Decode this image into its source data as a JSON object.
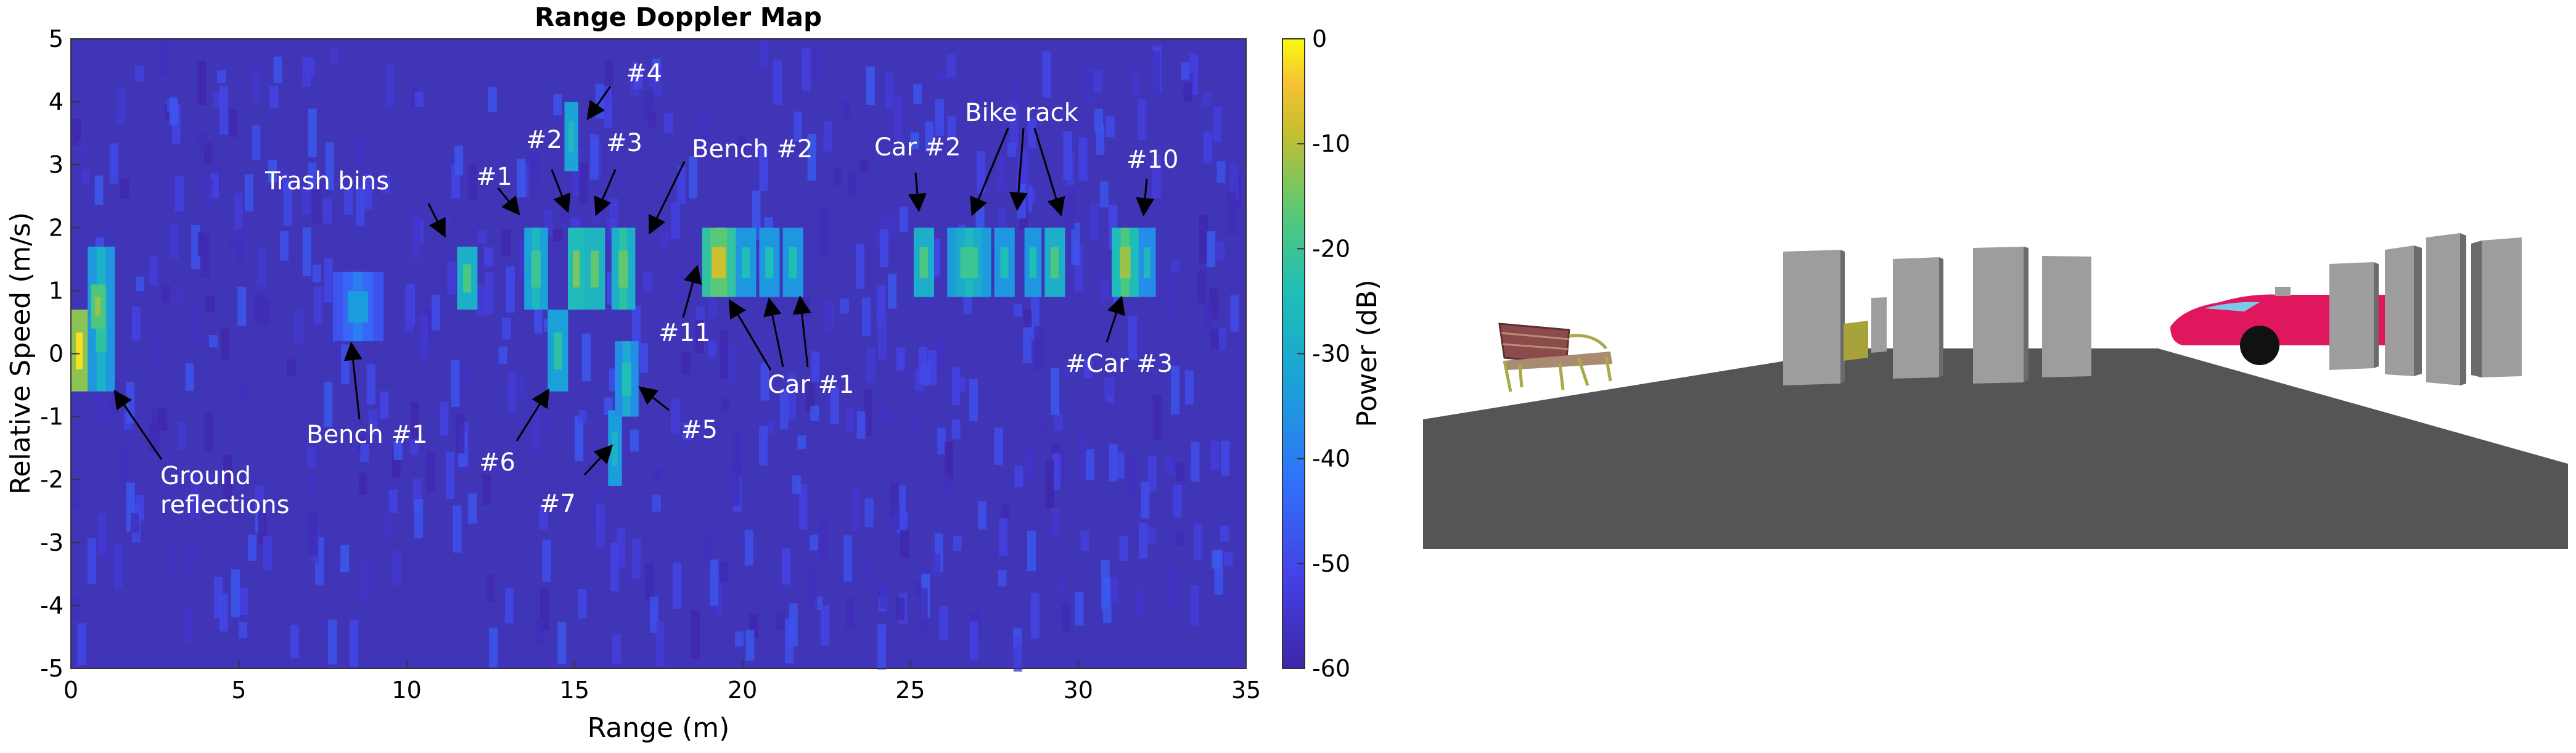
{
  "chart_data": {
    "type": "heatmap",
    "title": "Range Doppler Map",
    "xlabel": "Range (m)",
    "ylabel": "Relative Speed (m/s)",
    "xlim": [
      0,
      35
    ],
    "ylim": [
      -5,
      5
    ],
    "x_ticks": [
      "0",
      "5",
      "10",
      "15",
      "20",
      "25",
      "30",
      "35"
    ],
    "y_ticks": [
      "5",
      "4",
      "3",
      "2",
      "1",
      "0",
      "-1",
      "-2",
      "-3",
      "-4",
      "-5"
    ],
    "colorbar": {
      "label": "Power (dB)",
      "range": [
        -60,
        0
      ],
      "ticks": [
        "0",
        "-10",
        "-20",
        "-30",
        "-40",
        "-50",
        "-60"
      ],
      "colormap": "parula"
    },
    "background_power_db": -55,
    "detections": [
      {
        "range": [
          0.0,
          0.5
        ],
        "speed": [
          -0.6,
          0.7
        ],
        "power_db": -8
      },
      {
        "range": [
          0.5,
          1.3
        ],
        "speed": [
          -0.6,
          1.7
        ],
        "power_db": -28
      },
      {
        "range": [
          0.6,
          1.0
        ],
        "speed": [
          0.4,
          1.1
        ],
        "power_db": -18
      },
      {
        "range": [
          7.8,
          9.3
        ],
        "speed": [
          0.2,
          1.3
        ],
        "power_db": -40
      },
      {
        "range": [
          11.5,
          12.1
        ],
        "speed": [
          0.7,
          1.7
        ],
        "power_db": -24
      },
      {
        "range": [
          13.5,
          14.2
        ],
        "speed": [
          0.7,
          2.0
        ],
        "power_db": -26
      },
      {
        "range": [
          14.2,
          14.8
        ],
        "speed": [
          -0.6,
          0.7
        ],
        "power_db": -28
      },
      {
        "range": [
          14.7,
          15.1
        ],
        "speed": [
          2.9,
          4.0
        ],
        "power_db": -32
      },
      {
        "range": [
          14.8,
          15.3
        ],
        "speed": [
          0.7,
          2.0
        ],
        "power_db": -20
      },
      {
        "range": [
          15.3,
          15.9
        ],
        "speed": [
          0.7,
          2.0
        ],
        "power_db": -22
      },
      {
        "range": [
          16.0,
          16.4
        ],
        "speed": [
          -2.1,
          -0.9
        ],
        "power_db": -34
      },
      {
        "range": [
          16.2,
          16.9
        ],
        "speed": [
          -1.0,
          0.2
        ],
        "power_db": -30
      },
      {
        "range": [
          16.1,
          16.8
        ],
        "speed": [
          0.7,
          2.0
        ],
        "power_db": -22
      },
      {
        "range": [
          18.8,
          19.8
        ],
        "speed": [
          0.9,
          2.0
        ],
        "power_db": -14
      },
      {
        "range": [
          19.8,
          20.4
        ],
        "speed": [
          0.9,
          2.0
        ],
        "power_db": -30
      },
      {
        "range": [
          20.5,
          21.1
        ],
        "speed": [
          0.9,
          2.0
        ],
        "power_db": -30
      },
      {
        "range": [
          21.2,
          21.8
        ],
        "speed": [
          0.9,
          2.0
        ],
        "power_db": -30
      },
      {
        "range": [
          25.1,
          25.7
        ],
        "speed": [
          0.9,
          2.0
        ],
        "power_db": -24
      },
      {
        "range": [
          26.1,
          27.4
        ],
        "speed": [
          0.9,
          2.0
        ],
        "power_db": -26
      },
      {
        "range": [
          27.5,
          28.1
        ],
        "speed": [
          0.9,
          2.0
        ],
        "power_db": -30
      },
      {
        "range": [
          28.4,
          28.9
        ],
        "speed": [
          0.9,
          2.0
        ],
        "power_db": -30
      },
      {
        "range": [
          29.0,
          29.6
        ],
        "speed": [
          0.9,
          2.0
        ],
        "power_db": -24
      },
      {
        "range": [
          31.0,
          31.8
        ],
        "speed": [
          0.9,
          2.0
        ],
        "power_db": -18
      },
      {
        "range": [
          31.8,
          32.3
        ],
        "speed": [
          0.9,
          2.0
        ],
        "power_db": -32
      }
    ],
    "annotations": [
      "#4",
      "#2",
      "#3",
      "#1",
      "Trash bins",
      "Bench #2",
      "Car #2",
      "Bike rack",
      "#10",
      "#11",
      "Car #1",
      "#Car #3",
      "Bench #1",
      "#6",
      "#5",
      "#7",
      "Ground",
      "reflections"
    ]
  },
  "scene_image": {
    "description_icons": [
      "bench-icon",
      "trash-bin-icon",
      "car-icon"
    ],
    "ground_color": "#555555"
  }
}
